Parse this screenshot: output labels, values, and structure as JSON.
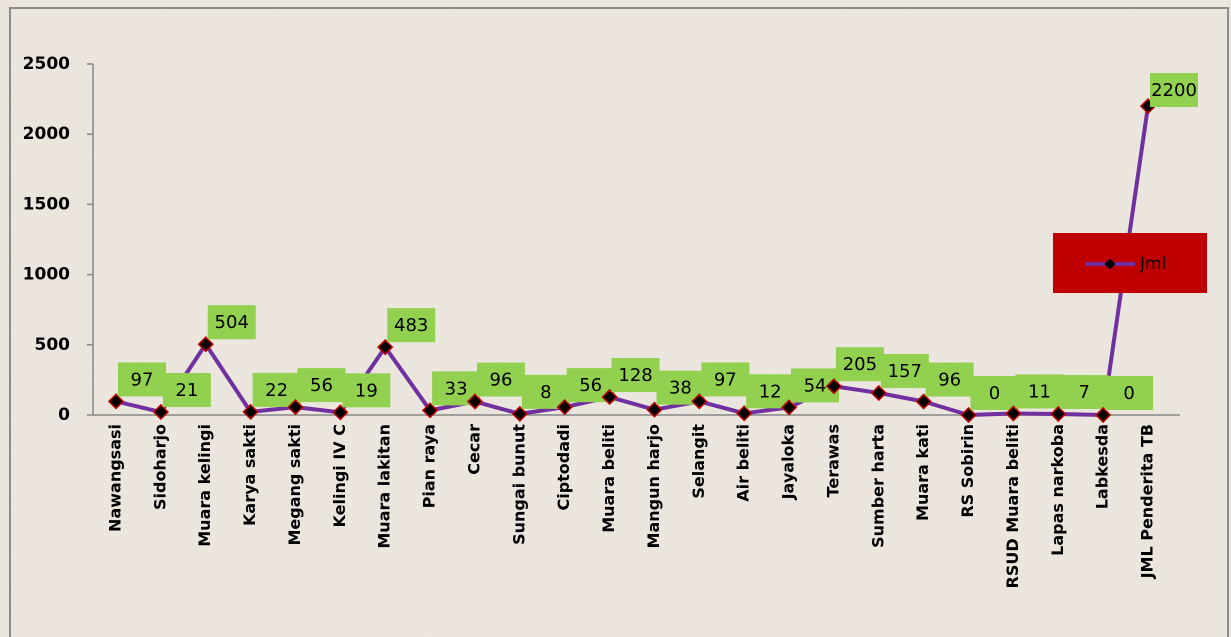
{
  "chart_data": {
    "type": "line",
    "categories": [
      "Nawangsasi",
      "Sidoharjo",
      "Muara kelingi",
      "Karya sakti",
      "Megang sakti",
      "Kelingi IV C",
      "Muara lakitan",
      "Pian raya",
      "Cecar",
      "Sungai bunut",
      "Ciptodadi",
      "Muara beliti",
      "Mangun harjo",
      "Selangit",
      "Air beliti",
      "Jayaloka",
      "Terawas",
      "Sumber harta",
      "Muara kati",
      "RS Sobirin",
      "RSUD Muara beliti",
      "Lapas narkoba",
      "Labkesda",
      "JML Penderita TB"
    ],
    "series": [
      {
        "name": "Jml",
        "color": "#7030a0",
        "values": [
          97,
          21,
          504,
          22,
          56,
          19,
          483,
          33,
          96,
          8,
          56,
          128,
          38,
          97,
          12,
          54,
          205,
          157,
          96,
          0,
          11,
          7,
          0,
          2200
        ]
      }
    ],
    "ylim": [
      0,
      2500
    ],
    "yticks": [
      0,
      500,
      1000,
      1500,
      2000,
      2500
    ],
    "legend": "right"
  }
}
